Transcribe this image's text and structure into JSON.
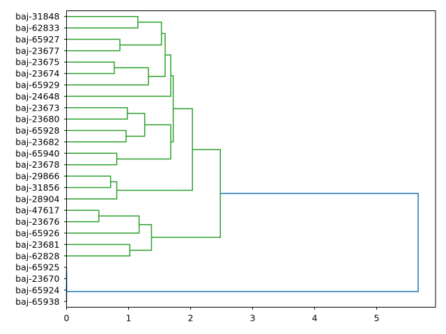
{
  "chart_data": {
    "type": "dendrogram",
    "orientation": "left",
    "title": "",
    "xlabel": "",
    "ylabel": "",
    "xlim": [
      0,
      5.95
    ],
    "xticks": [
      0,
      1,
      2,
      3,
      4,
      5
    ],
    "leaves": [
      "baj-31848",
      "baj-62833",
      "baj-65927",
      "baj-23677",
      "baj-23675",
      "baj-23674",
      "baj-65929",
      "baj-24648",
      "baj-23673",
      "baj-23680",
      "baj-65928",
      "baj-23682",
      "baj-65940",
      "baj-23678",
      "baj-29866",
      "baj-31856",
      "baj-28904",
      "baj-47617",
      "baj-23676",
      "baj-65926",
      "baj-23681",
      "baj-62828",
      "baj-65925",
      "baj-23670",
      "baj-65924",
      "baj-65938"
    ],
    "colors": {
      "cluster": "#2ca02c",
      "above_threshold": "#1f77b4"
    },
    "merges": [
      [
        0,
        1,
        1.15,
        "cluster"
      ],
      [
        2,
        3,
        0.86,
        "cluster"
      ],
      [
        26,
        27,
        1.53,
        "cluster"
      ],
      [
        4,
        5,
        0.77,
        "cluster"
      ],
      [
        29,
        6,
        1.32,
        "cluster"
      ],
      [
        28,
        30,
        1.59,
        "cluster"
      ],
      [
        31,
        7,
        1.68,
        "cluster"
      ],
      [
        8,
        9,
        0.98,
        "cluster"
      ],
      [
        10,
        11,
        0.96,
        "cluster"
      ],
      [
        33,
        34,
        1.26,
        "cluster"
      ],
      [
        12,
        13,
        0.81,
        "cluster"
      ],
      [
        35,
        36,
        1.68,
        "cluster"
      ],
      [
        32,
        37,
        1.72,
        "cluster"
      ],
      [
        14,
        15,
        0.71,
        "cluster"
      ],
      [
        39,
        16,
        0.81,
        "cluster"
      ],
      [
        38,
        40,
        2.03,
        "cluster"
      ],
      [
        17,
        18,
        0.52,
        "cluster"
      ],
      [
        42,
        19,
        1.17,
        "cluster"
      ],
      [
        20,
        21,
        1.02,
        "cluster"
      ],
      [
        43,
        44,
        1.37,
        "cluster"
      ],
      [
        41,
        45,
        2.48,
        "cluster"
      ],
      [
        22,
        23,
        0,
        "above_threshold"
      ],
      [
        47,
        24,
        0,
        "above_threshold"
      ],
      [
        48,
        25,
        0,
        "above_threshold"
      ],
      [
        46,
        49,
        5.67,
        "above_threshold"
      ]
    ]
  }
}
